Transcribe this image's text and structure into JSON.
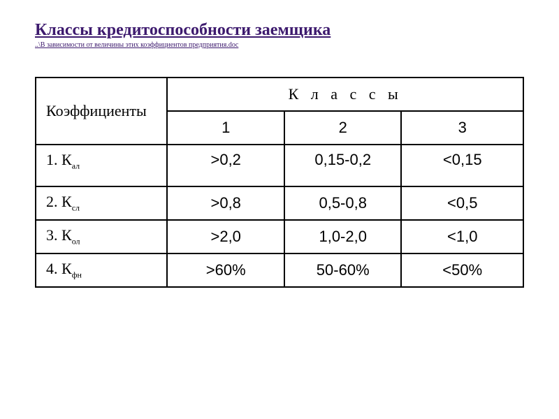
{
  "title": "Классы кредитоспособности заемщика",
  "subtitle": "..\\В зависимости от величины этих коэффициентов предприятия.doc",
  "table": {
    "header_left": "Коэффициенты",
    "header_spanned": "К л а с с ы",
    "class_numbers": [
      "1",
      "2",
      "3"
    ],
    "rows": [
      {
        "label_num": "1. К",
        "label_sub": "ал",
        "c1": ">0,2",
        "c2": "0,15-0,2",
        "c3": "<0,15"
      },
      {
        "label_num": "2. К",
        "label_sub": "сл",
        "c1": ">0,8",
        "c2": "0,5-0,8",
        "c3": "<0,5"
      },
      {
        "label_num": "3. К",
        "label_sub": "ол",
        "c1": ">2,0",
        "c2": "1,0-2,0",
        "c3": "<1,0"
      },
      {
        "label_num": "4. К",
        "label_sub": "фн",
        "c1": ">60%",
        "c2": "50-60%",
        "c3": "<50%"
      }
    ],
    "colors": {
      "title_color": "#3d1a6e",
      "border_color": "#000000",
      "background": "#ffffff",
      "text_color": "#000000"
    },
    "fonts": {
      "title_size": 24,
      "subtitle_size": 10,
      "cell_size": 22,
      "sub_size": 12
    }
  }
}
